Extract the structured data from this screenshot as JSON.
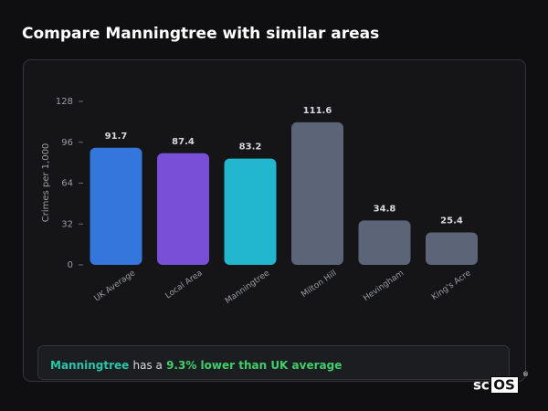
{
  "chart_data": {
    "type": "bar",
    "title": "Compare Manningtree with similar areas",
    "ylabel": "Crimes per 1,000",
    "categories": [
      "UK Average",
      "Local Area",
      "Manningtree",
      "Milton Hill",
      "Hevingham",
      "King's Acre"
    ],
    "values": [
      91.7,
      87.4,
      83.2,
      111.6,
      34.8,
      25.4
    ],
    "colors": [
      "#3576dc",
      "#7a4fd8",
      "#22b6cf",
      "#5b6577",
      "#5b6577",
      "#5b6577"
    ],
    "ylim": [
      0,
      128
    ],
    "yticks": [
      0,
      32,
      64,
      96,
      128
    ]
  },
  "summary": {
    "area": "Manningtree",
    "middle": "has a",
    "highlight": "9.3% lower than UK average"
  },
  "logo": {
    "prefix": "sc",
    "boxed": "OS",
    "mark": "®"
  }
}
